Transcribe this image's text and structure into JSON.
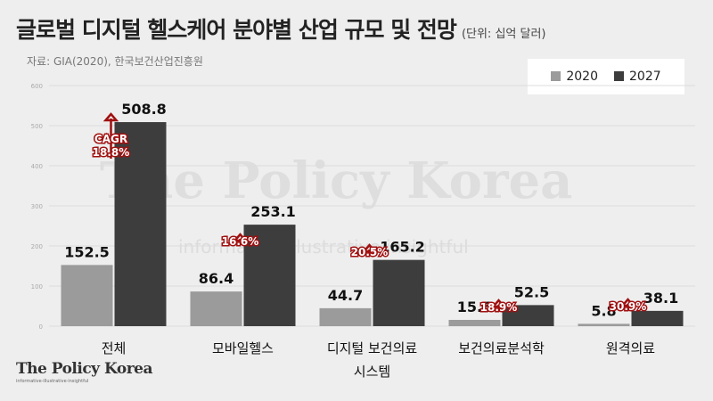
{
  "header": {
    "title": "글로벌 디지털 헬스케어 분야별 산업 규모 및 전망",
    "unit": "(단위: 십억 달러)",
    "source": "자료: GIA(2020), 한국보건산업진흥원"
  },
  "watermark": {
    "text": "The Policy Korea",
    "subtext": "informative·illustrative·insightful"
  },
  "logo": {
    "text": "The Policy Korea",
    "subtext": "informative·illustrative·insightful"
  },
  "colors": {
    "background": "#eeeeee",
    "series_2020": "#9b9b9b",
    "series_2027": "#3d3d3d",
    "cagr_accent": "#a01010"
  },
  "chart_data": {
    "type": "bar",
    "categories": [
      "전체",
      "모바일헬스",
      "디지털 보건의료\n시스템",
      "보건의료분석학",
      "원격의료"
    ],
    "series": [
      {
        "name": "2020",
        "values": [
          152.5,
          86.4,
          44.7,
          15.6,
          5.8
        ]
      },
      {
        "name": "2027",
        "values": [
          508.8,
          253.1,
          165.2,
          52.5,
          38.1
        ]
      }
    ],
    "value_labels": {
      "2020": [
        "152.5",
        "86.4",
        "44.7",
        "15.6",
        "5.8"
      ],
      "2027": [
        "508.8",
        "253.1",
        "165.2",
        "52.5",
        "38.1"
      ]
    },
    "cagr_labels": [
      "CAGR\n18.8%",
      "16.6%",
      "20.5%",
      "18.9%",
      "30.9%"
    ],
    "yticks": [
      0,
      100,
      200,
      300,
      400,
      500,
      600
    ],
    "ylim": [
      0,
      600
    ],
    "legend": "top-right",
    "grid": true
  }
}
